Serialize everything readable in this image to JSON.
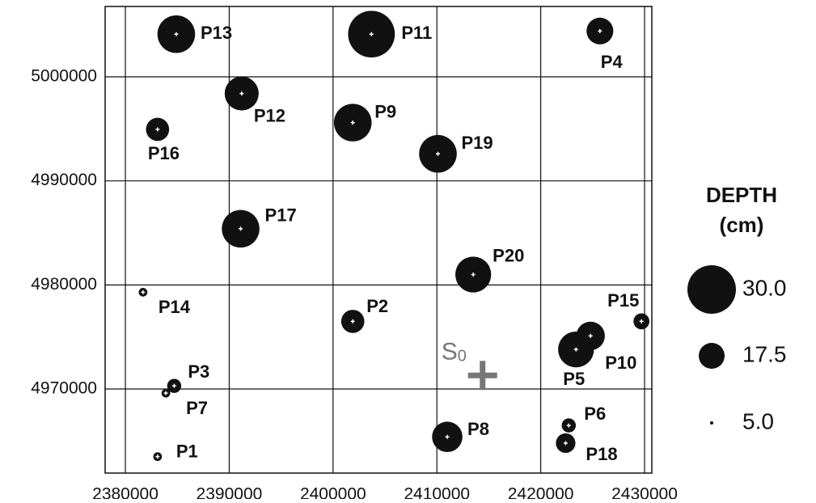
{
  "chart_data": {
    "type": "bubble",
    "x": [
      2384900,
      2403700,
      2425700,
      2391200,
      2401900,
      2383100,
      2410100,
      2391100,
      2413500,
      2381700,
      2401900,
      2429700,
      2424800,
      2423400,
      2384700,
      2383900,
      2411000,
      2422700,
      2422400,
      2383100
    ],
    "y": [
      5004100,
      5004100,
      5004400,
      4998400,
      4995600,
      4994950,
      4992600,
      4985400,
      4981000,
      4979300,
      4976500,
      4976500,
      4975100,
      4973800,
      4970300,
      4969600,
      4965400,
      4966500,
      4964800,
      4963500
    ],
    "sizes": [
      24,
      29,
      18,
      22,
      24,
      16,
      24,
      24,
      23,
      8,
      16,
      12,
      19,
      23,
      11,
      8,
      20,
      11,
      14,
      8
    ],
    "point_labels": [
      "P13",
      "P11",
      "P4",
      "P12",
      "P9",
      "P16",
      "P19",
      "P17",
      "P20",
      "P14",
      "P2",
      "P15",
      "P10",
      "P5",
      "P3",
      "P7",
      "P8",
      "P6",
      "P18",
      "P1"
    ],
    "color": "#111111",
    "xlim": [
      2378050,
      2430700
    ],
    "ylim": [
      4961920,
      5006760
    ],
    "xticks": [
      2380000,
      2390000,
      2400000,
      2410000,
      2420000,
      2430000
    ],
    "yticks": [
      4970000,
      4980000,
      4990000,
      5000000
    ],
    "grid": true,
    "annotation": {
      "label": "S",
      "subscript": "0",
      "x": 2414400,
      "y": 4971300,
      "color": "#777777"
    },
    "size_legend": {
      "title": [
        "DEPTH",
        "(cm)"
      ],
      "sizes": [
        {
          "value": 30,
          "label": "30.0"
        },
        {
          "value": 17.5,
          "label": "17.5"
        },
        {
          "value": 5,
          "label": "5.0"
        }
      ]
    }
  }
}
